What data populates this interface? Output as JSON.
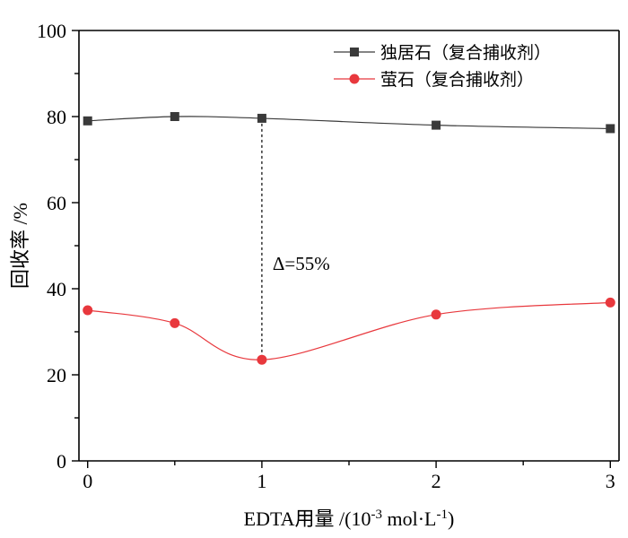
{
  "chart_data": {
    "type": "line",
    "xlabel_main": "EDTA用量 /(10",
    "xlabel_exp1": "-3",
    "xlabel_mid": " mol·L",
    "xlabel_exp2": "-1",
    "xlabel_end": ")",
    "ylabel": "回收率 /%",
    "xlim": [
      -0.05,
      3.05
    ],
    "ylim": [
      0,
      100
    ],
    "x_ticks": [
      0,
      1,
      2,
      3
    ],
    "x_tick_labels": [
      "0",
      "1",
      "2",
      "3"
    ],
    "x_minor_ticks": [
      0.5,
      1.5,
      2.5
    ],
    "y_ticks": [
      0,
      20,
      40,
      60,
      80,
      100
    ],
    "y_tick_labels": [
      "0",
      "20",
      "40",
      "60",
      "80",
      "100"
    ],
    "y_minor_ticks": [
      10,
      30,
      50,
      70,
      90
    ],
    "legend_position": "top-right",
    "series": [
      {
        "name": "独居石（复合捕收剂）",
        "marker": "square",
        "color": "#3a3a3a",
        "x": [
          0,
          0.5,
          1,
          2,
          3
        ],
        "values": [
          79.0,
          80.0,
          79.6,
          78.0,
          77.2
        ]
      },
      {
        "name": "萤石（复合捕收剂）",
        "marker": "circle",
        "color": "#e8383d",
        "x": [
          0,
          0.5,
          1,
          2,
          3
        ],
        "values": [
          35.0,
          32.0,
          23.5,
          34.0,
          36.8
        ]
      }
    ],
    "annotation": {
      "text": "Δ=55%",
      "x": 1,
      "y_from": 79.6,
      "y_to": 23.5,
      "label_y": 46
    }
  }
}
